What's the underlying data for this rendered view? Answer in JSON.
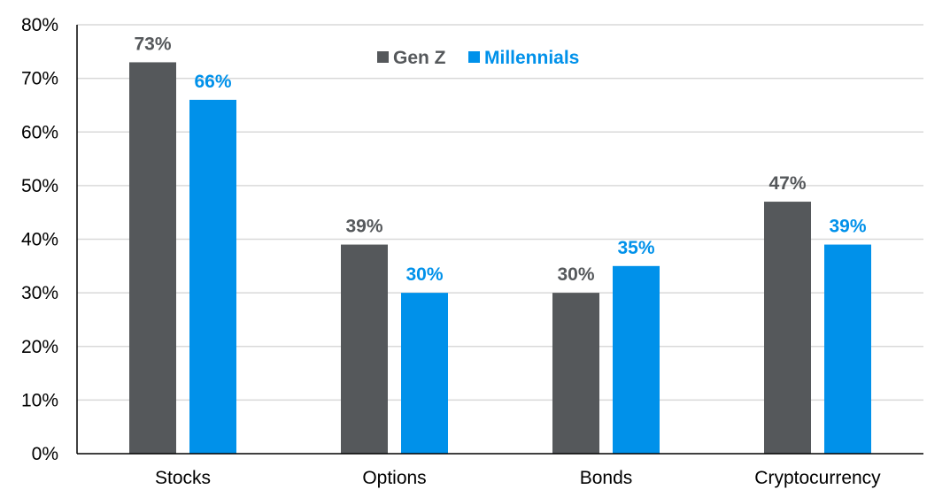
{
  "chart_data": {
    "type": "bar",
    "categories": [
      "Stocks",
      "Options",
      "Bonds",
      "Cryptocurrency"
    ],
    "series": [
      {
        "name": "Gen Z",
        "values": [
          73,
          39,
          30,
          47
        ],
        "color": "#55585B",
        "label_color": "#55585B"
      },
      {
        "name": "Millennials",
        "values": [
          66,
          30,
          35,
          39
        ],
        "color": "#0091EA",
        "label_color": "#0091EA"
      }
    ],
    "value_suffix": "%",
    "ylim": [
      0,
      80
    ],
    "yticks": [
      0,
      10,
      20,
      30,
      40,
      50,
      60,
      70,
      80
    ],
    "ytick_labels": [
      "0%",
      "10%",
      "20%",
      "30%",
      "40%",
      "50%",
      "60%",
      "70%",
      "80%"
    ],
    "grid": true,
    "legend_position": "top-center",
    "title": "",
    "xlabel": "",
    "ylabel": ""
  }
}
